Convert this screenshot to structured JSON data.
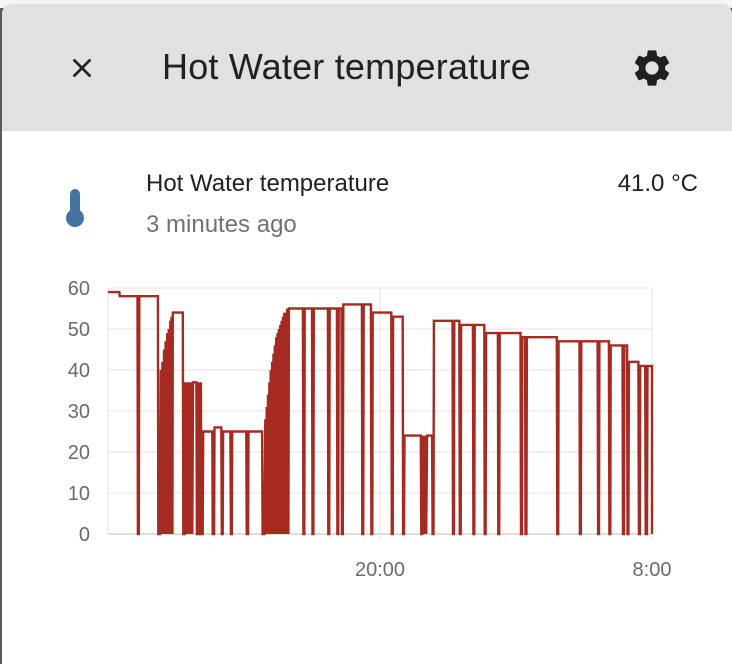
{
  "dialog": {
    "title": "Hot Water temperature",
    "close_icon": "close-icon",
    "settings_icon": "gear-icon"
  },
  "entity": {
    "icon": "thermometer-icon",
    "icon_color": "#44739e",
    "name": "Hot Water temperature",
    "last_changed": "3 minutes ago",
    "state": "41.0 °C"
  },
  "chart_data": {
    "type": "line",
    "title": "",
    "xlabel": "",
    "ylabel": "",
    "ylim": [
      0,
      60
    ],
    "y_ticks": [
      0,
      10,
      20,
      30,
      40,
      50,
      60
    ],
    "x_range": [
      0,
      24
    ],
    "x_ticks": [
      {
        "value": 12,
        "label": "20:00"
      },
      {
        "value": 24,
        "label": "8:00"
      }
    ],
    "line_color": "#a52a22",
    "grid": true,
    "series": [
      {
        "name": "",
        "points": [
          [
            0.0,
            59
          ],
          [
            0.5,
            59
          ],
          [
            0.52,
            58
          ],
          [
            1.3,
            58
          ],
          [
            1.32,
            0
          ],
          [
            1.36,
            0
          ],
          [
            1.38,
            58
          ],
          [
            2.2,
            58
          ],
          [
            2.22,
            0
          ],
          [
            2.3,
            0
          ],
          [
            2.33,
            40
          ],
          [
            2.36,
            0
          ],
          [
            2.4,
            42
          ],
          [
            2.43,
            0
          ],
          [
            2.47,
            45
          ],
          [
            2.5,
            0
          ],
          [
            2.54,
            47
          ],
          [
            2.57,
            0
          ],
          [
            2.61,
            49
          ],
          [
            2.64,
            0
          ],
          [
            2.68,
            50
          ],
          [
            2.71,
            0
          ],
          [
            2.75,
            52
          ],
          [
            2.78,
            0
          ],
          [
            2.8,
            53
          ],
          [
            2.84,
            0
          ],
          [
            2.86,
            54
          ],
          [
            3.3,
            54
          ],
          [
            3.32,
            0
          ],
          [
            3.38,
            0
          ],
          [
            3.4,
            37
          ],
          [
            3.42,
            0
          ],
          [
            3.45,
            37
          ],
          [
            3.5,
            0
          ],
          [
            3.53,
            37
          ],
          [
            3.56,
            0
          ],
          [
            3.6,
            37
          ],
          [
            3.64,
            0
          ],
          [
            3.68,
            37
          ],
          [
            3.72,
            0
          ],
          [
            3.75,
            37
          ],
          [
            3.9,
            37
          ],
          [
            3.92,
            0
          ],
          [
            3.98,
            0
          ],
          [
            4.0,
            37
          ],
          [
            4.02,
            0
          ],
          [
            4.08,
            0
          ],
          [
            4.1,
            37
          ],
          [
            4.12,
            0
          ],
          [
            4.18,
            0
          ],
          [
            4.2,
            25
          ],
          [
            4.6,
            25
          ],
          [
            4.62,
            0
          ],
          [
            4.68,
            0
          ],
          [
            4.7,
            26
          ],
          [
            5.0,
            26
          ],
          [
            5.02,
            0
          ],
          [
            5.06,
            0
          ],
          [
            5.08,
            25
          ],
          [
            5.4,
            25
          ],
          [
            5.42,
            0
          ],
          [
            5.46,
            0
          ],
          [
            5.48,
            25
          ],
          [
            6.1,
            25
          ],
          [
            6.12,
            0
          ],
          [
            6.18,
            0
          ],
          [
            6.2,
            25
          ],
          [
            6.8,
            25
          ],
          [
            6.82,
            0
          ],
          [
            6.9,
            0
          ],
          [
            6.94,
            28
          ],
          [
            6.96,
            0
          ],
          [
            7.0,
            31
          ],
          [
            7.02,
            0
          ],
          [
            7.06,
            34
          ],
          [
            7.08,
            0
          ],
          [
            7.12,
            37
          ],
          [
            7.14,
            0
          ],
          [
            7.18,
            40
          ],
          [
            7.2,
            0
          ],
          [
            7.24,
            42
          ],
          [
            7.26,
            0
          ],
          [
            7.3,
            44
          ],
          [
            7.32,
            0
          ],
          [
            7.36,
            46
          ],
          [
            7.38,
            0
          ],
          [
            7.42,
            48
          ],
          [
            7.44,
            0
          ],
          [
            7.48,
            49
          ],
          [
            7.5,
            0
          ],
          [
            7.54,
            50
          ],
          [
            7.56,
            0
          ],
          [
            7.6,
            51
          ],
          [
            7.62,
            0
          ],
          [
            7.66,
            52
          ],
          [
            7.68,
            0
          ],
          [
            7.72,
            53
          ],
          [
            7.74,
            0
          ],
          [
            7.78,
            54
          ],
          [
            7.8,
            0
          ],
          [
            7.84,
            54
          ],
          [
            7.86,
            0
          ],
          [
            7.9,
            55
          ],
          [
            7.92,
            0
          ],
          [
            7.94,
            55
          ],
          [
            7.96,
            0
          ],
          [
            7.98,
            55
          ],
          [
            8.6,
            55
          ],
          [
            8.62,
            0
          ],
          [
            8.66,
            0
          ],
          [
            8.68,
            55
          ],
          [
            9.0,
            55
          ],
          [
            9.02,
            0
          ],
          [
            9.06,
            0
          ],
          [
            9.08,
            55
          ],
          [
            9.7,
            55
          ],
          [
            9.72,
            0
          ],
          [
            9.76,
            0
          ],
          [
            9.78,
            55
          ],
          [
            10.1,
            55
          ],
          [
            10.12,
            0
          ],
          [
            10.16,
            0
          ],
          [
            10.18,
            55
          ],
          [
            10.3,
            55
          ],
          [
            10.32,
            0
          ],
          [
            10.36,
            0
          ],
          [
            10.38,
            56
          ],
          [
            11.2,
            56
          ],
          [
            11.22,
            0
          ],
          [
            11.26,
            0
          ],
          [
            11.28,
            56
          ],
          [
            11.6,
            56
          ],
          [
            11.62,
            0
          ],
          [
            11.66,
            0
          ],
          [
            11.68,
            54
          ],
          [
            12.5,
            54
          ],
          [
            12.52,
            0
          ],
          [
            12.56,
            0
          ],
          [
            12.58,
            53
          ],
          [
            13.0,
            53
          ],
          [
            13.02,
            0
          ],
          [
            13.06,
            0
          ],
          [
            13.08,
            24
          ],
          [
            13.8,
            24
          ],
          [
            13.82,
            0
          ],
          [
            13.86,
            0
          ],
          [
            13.9,
            24
          ],
          [
            13.92,
            0
          ],
          [
            13.96,
            24
          ],
          [
            13.98,
            0
          ],
          [
            14.02,
            24
          ],
          [
            14.04,
            0
          ],
          [
            14.08,
            24
          ],
          [
            14.3,
            24
          ],
          [
            14.32,
            0
          ],
          [
            14.36,
            0
          ],
          [
            14.38,
            52
          ],
          [
            15.2,
            52
          ],
          [
            15.22,
            0
          ],
          [
            15.26,
            0
          ],
          [
            15.28,
            52
          ],
          [
            15.5,
            52
          ],
          [
            15.52,
            0
          ],
          [
            15.56,
            0
          ],
          [
            15.58,
            51
          ],
          [
            16.1,
            51
          ],
          [
            16.12,
            0
          ],
          [
            16.16,
            0
          ],
          [
            16.18,
            51
          ],
          [
            16.6,
            51
          ],
          [
            16.62,
            0
          ],
          [
            16.66,
            0
          ],
          [
            16.68,
            49
          ],
          [
            17.2,
            49
          ],
          [
            17.22,
            0
          ],
          [
            17.26,
            0
          ],
          [
            17.28,
            49
          ],
          [
            18.2,
            49
          ],
          [
            18.22,
            0
          ],
          [
            18.26,
            0
          ],
          [
            18.28,
            48
          ],
          [
            18.4,
            48
          ],
          [
            18.42,
            0
          ],
          [
            18.46,
            0
          ],
          [
            18.48,
            48
          ],
          [
            19.8,
            48
          ],
          [
            19.82,
            0
          ],
          [
            19.86,
            0
          ],
          [
            19.88,
            47
          ],
          [
            20.8,
            47
          ],
          [
            20.82,
            0
          ],
          [
            20.86,
            0
          ],
          [
            20.88,
            47
          ],
          [
            21.6,
            47
          ],
          [
            21.62,
            0
          ],
          [
            21.66,
            0
          ],
          [
            21.68,
            47
          ],
          [
            22.1,
            47
          ],
          [
            22.12,
            0
          ],
          [
            22.16,
            0
          ],
          [
            22.18,
            46
          ],
          [
            22.7,
            46
          ],
          [
            22.72,
            0
          ],
          [
            22.76,
            0
          ],
          [
            22.78,
            46
          ],
          [
            22.9,
            46
          ],
          [
            22.92,
            0
          ],
          [
            22.96,
            0
          ],
          [
            22.98,
            42
          ],
          [
            23.4,
            42
          ],
          [
            23.42,
            0
          ],
          [
            23.46,
            0
          ],
          [
            23.48,
            41
          ],
          [
            23.7,
            41
          ],
          [
            23.72,
            0
          ],
          [
            23.78,
            0
          ],
          [
            23.8,
            41
          ],
          [
            24.0,
            41
          ],
          [
            24.0,
            0
          ]
        ]
      }
    ]
  }
}
